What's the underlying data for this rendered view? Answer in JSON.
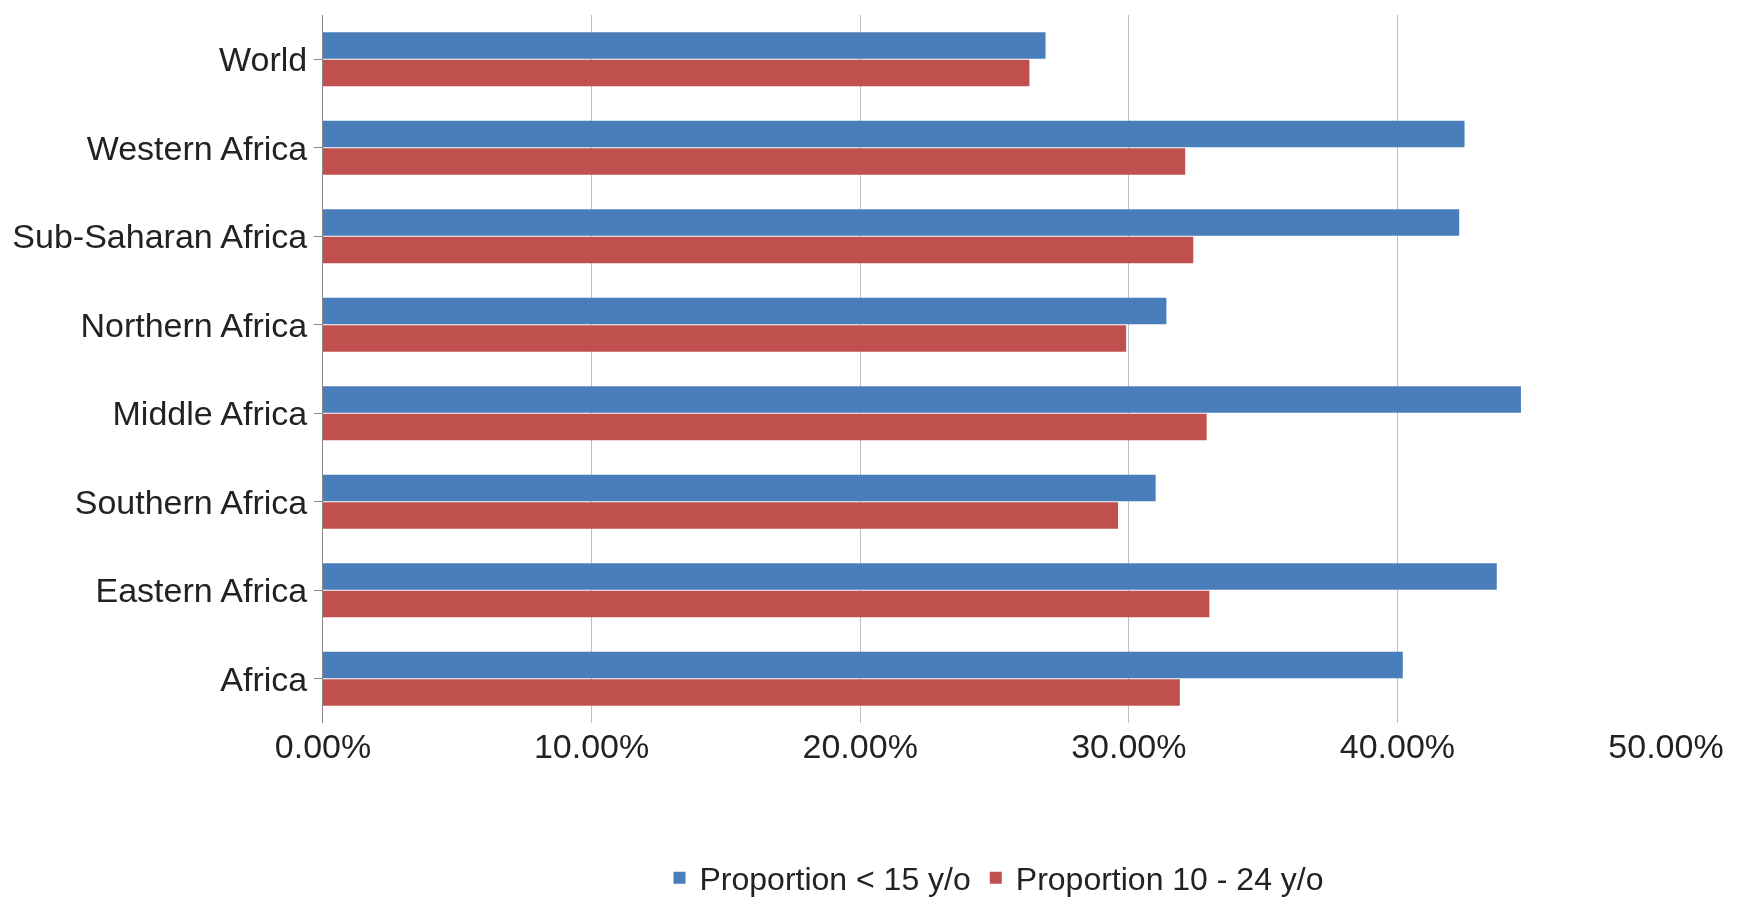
{
  "chart_data": {
    "type": "bar",
    "orientation": "horizontal",
    "categories": [
      "World",
      "Western Africa",
      "Sub-Saharan Africa",
      "Northern Africa",
      "Middle Africa",
      "Southern Africa",
      "Eastern Africa",
      "Africa"
    ],
    "series": [
      {
        "name": "Proportion < 15 y/o",
        "color": "#4a7ebb",
        "values": [
          26.9,
          42.5,
          42.3,
          31.4,
          44.6,
          31.0,
          43.7,
          40.2
        ]
      },
      {
        "name": "Proportion 10 - 24 y/o",
        "color": "#c0504d",
        "values": [
          26.3,
          32.1,
          32.4,
          29.9,
          32.9,
          29.6,
          33.0,
          31.9
        ]
      }
    ],
    "xlim": [
      0,
      50
    ],
    "xticks": [
      {
        "value": 0,
        "label": "0.00%"
      },
      {
        "value": 10,
        "label": "10.00%"
      },
      {
        "value": 20,
        "label": "20.00%"
      },
      {
        "value": 30,
        "label": "30.00%"
      },
      {
        "value": 40,
        "label": "40.00%"
      },
      {
        "value": 50,
        "label": "50.00%"
      }
    ],
    "grid": "x",
    "legend": "bottom"
  }
}
